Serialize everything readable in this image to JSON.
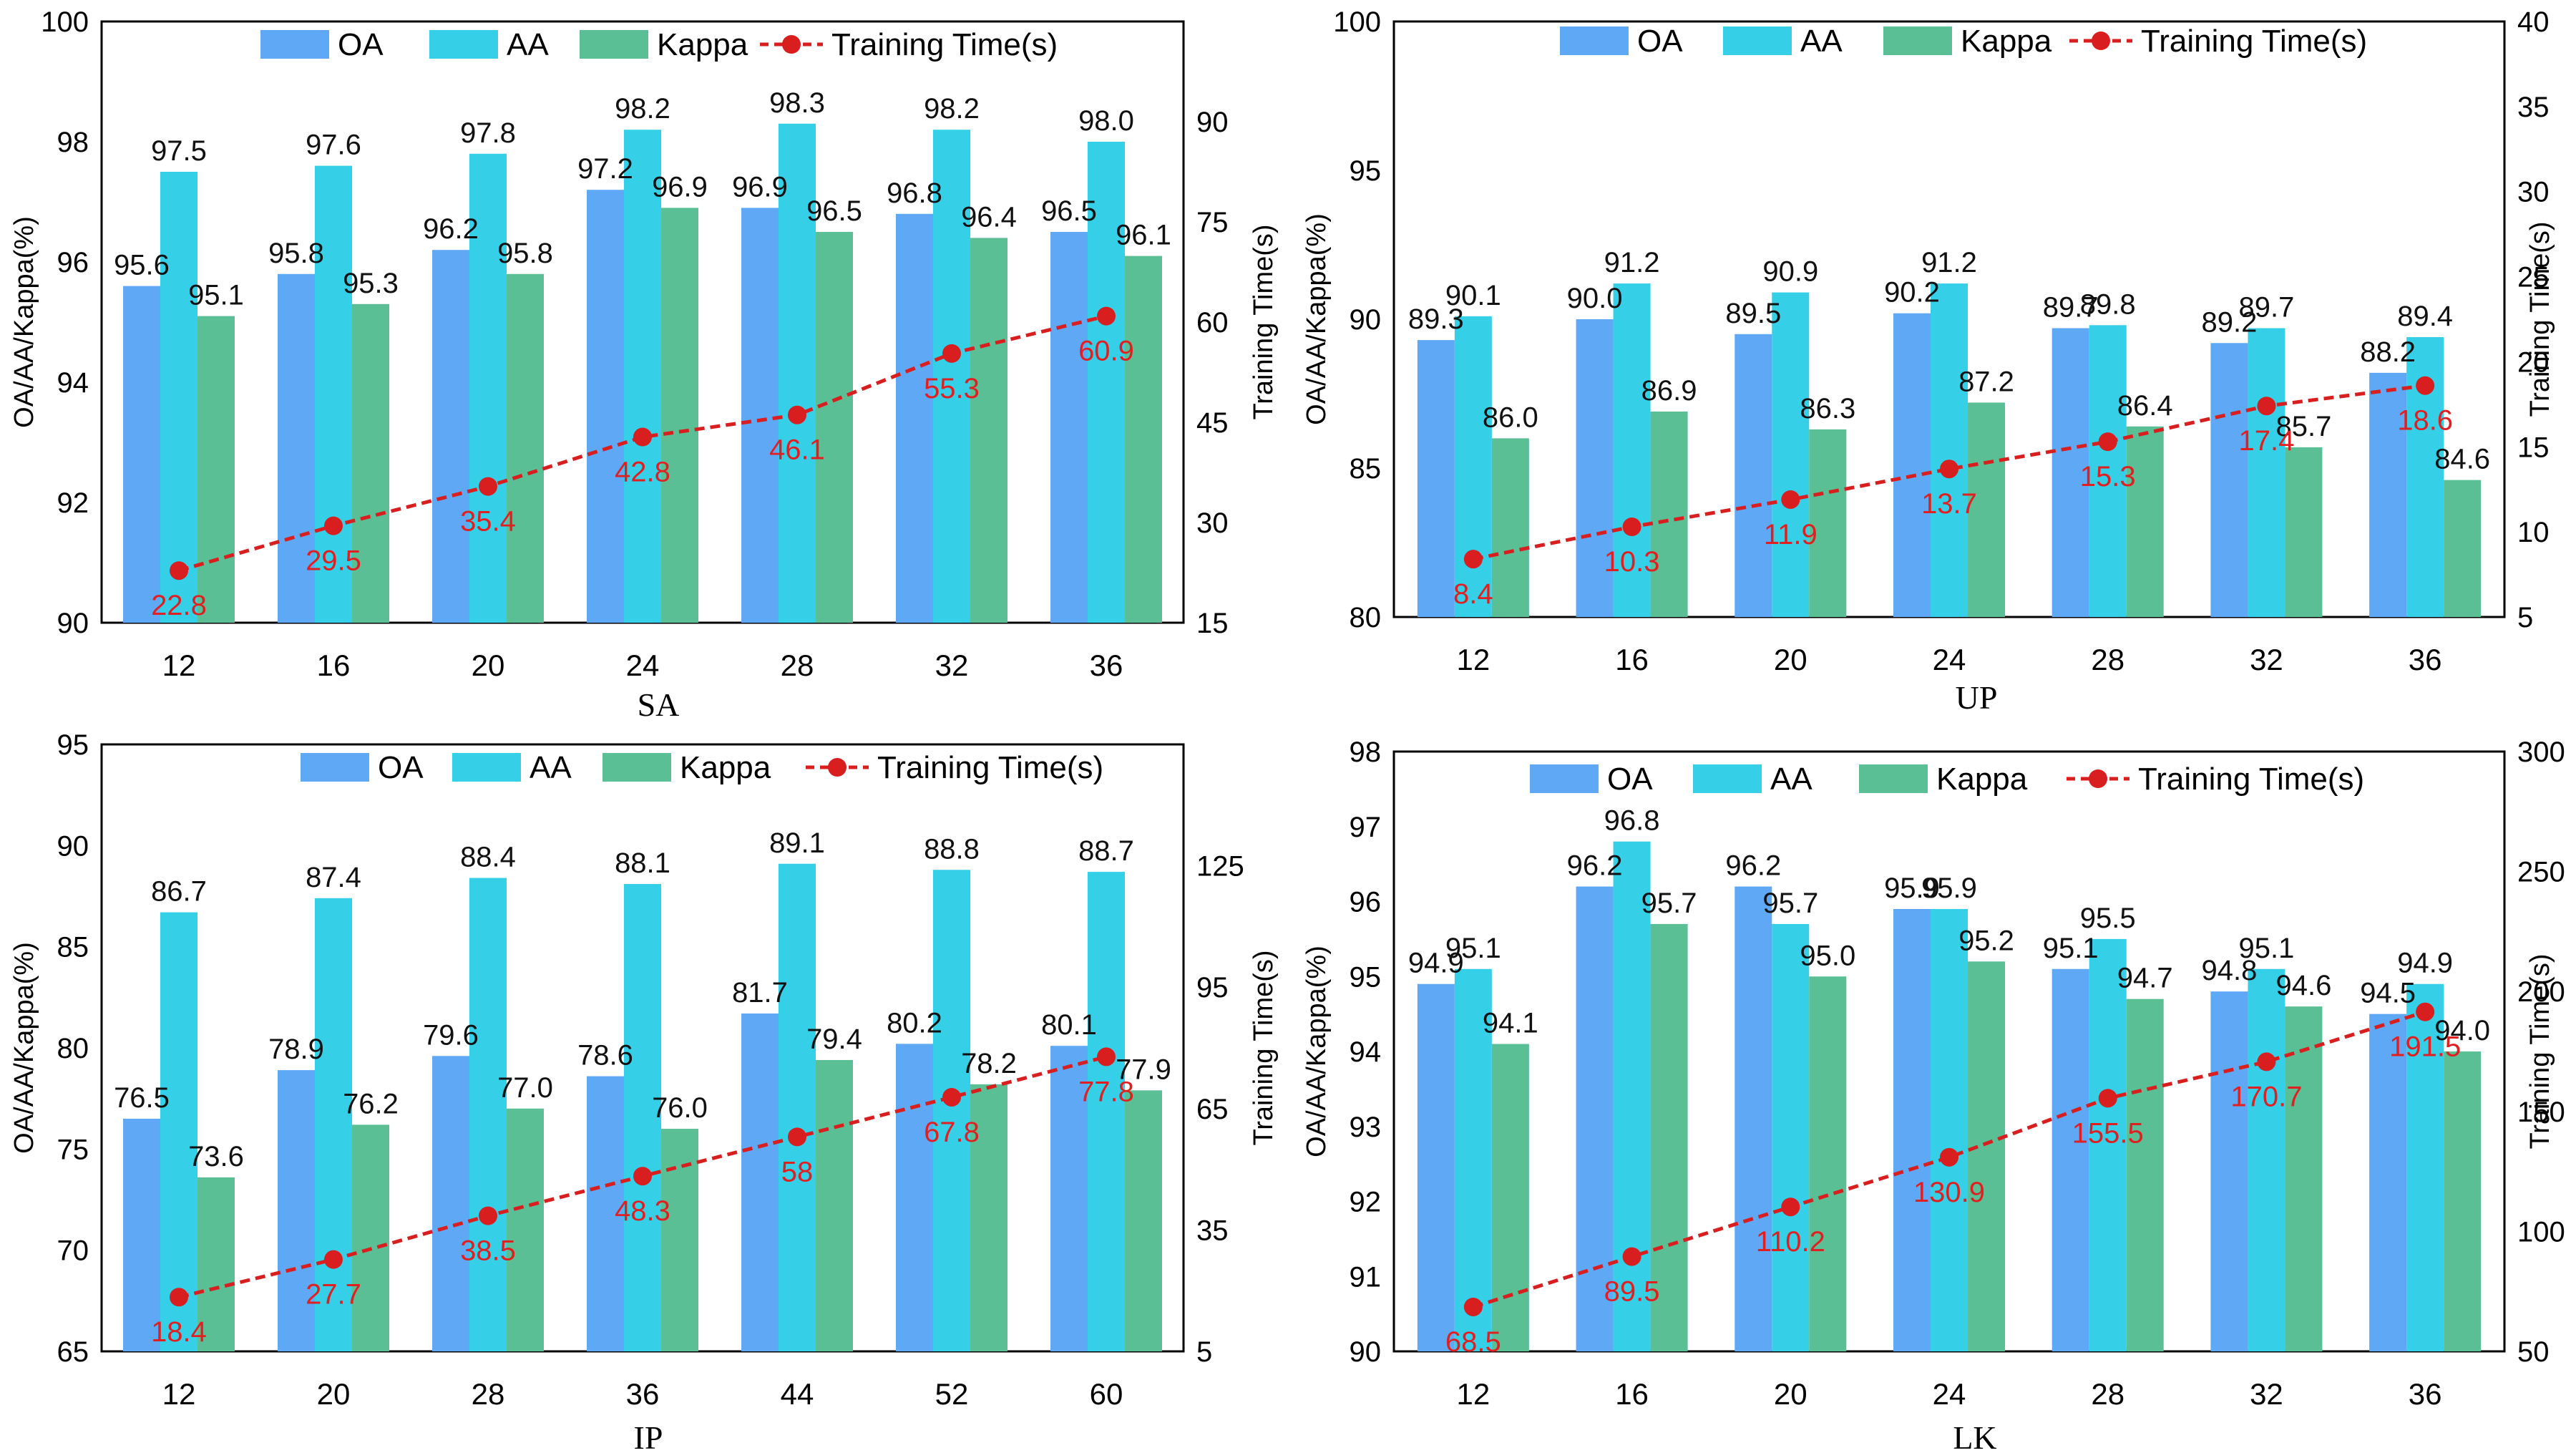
{
  "colors": {
    "OA": "#5fa8f5",
    "AA": "#35cfe8",
    "Kappa": "#5bbf95",
    "time": "#d81e1e",
    "time_label": "#e02020",
    "leader": "#a6a6a6"
  },
  "chart_data": [
    {
      "type": "bar",
      "title": "SA",
      "xlabel": "SA",
      "ylabel": "OA/AA/Kappa(%)",
      "y2label": "Training Time(s)",
      "ylim": [
        90,
        100
      ],
      "yticks": [
        90,
        92,
        94,
        96,
        98,
        100
      ],
      "y2lim": [
        15,
        105
      ],
      "y2ticks": [
        15,
        30,
        45,
        60,
        75,
        90
      ],
      "categories": [
        "12",
        "16",
        "20",
        "24",
        "28",
        "32",
        "36"
      ],
      "series": [
        {
          "name": "OA",
          "values": [
            95.6,
            95.8,
            96.2,
            97.2,
            96.9,
            96.8,
            96.5
          ],
          "labels": [
            "95.6",
            "95.8",
            "96.2",
            "97.2",
            "96.9",
            "96.8",
            "96.5"
          ]
        },
        {
          "name": "AA",
          "values": [
            97.5,
            97.6,
            97.8,
            98.2,
            98.3,
            98.2,
            98.0
          ],
          "labels": [
            "97.5",
            "97.6",
            "97.8",
            "98.2",
            "98.3",
            "98.2",
            "98.0"
          ]
        },
        {
          "name": "Kappa",
          "values": [
            95.1,
            95.3,
            95.8,
            96.9,
            96.5,
            96.4,
            96.1
          ],
          "labels": [
            "95.1",
            "95.3",
            "95.8",
            "96.9",
            "96.5",
            "96.4",
            "96.1"
          ]
        }
      ],
      "line": {
        "name": "Training Time(s)",
        "values": [
          22.8,
          29.5,
          35.4,
          42.8,
          46.1,
          55.3,
          60.9
        ],
        "labels": [
          "22.8",
          "29.5",
          "35.4",
          "42.8",
          "46.1",
          "55.3",
          "60.9"
        ]
      },
      "legend": [
        "OA",
        "AA",
        "Kappa",
        "Training Time(s)"
      ]
    },
    {
      "type": "bar",
      "title": "UP",
      "xlabel": "UP",
      "ylabel": "OA/AA/Kappa(%)",
      "y2label": "Training Time(s)",
      "ylim": [
        80,
        100
      ],
      "yticks": [
        80,
        85,
        90,
        95,
        100
      ],
      "y2lim": [
        5,
        40
      ],
      "y2ticks": [
        5,
        10,
        15,
        20,
        25,
        30,
        35,
        40
      ],
      "categories": [
        "12",
        "16",
        "20",
        "24",
        "28",
        "32",
        "36"
      ],
      "series": [
        {
          "name": "OA",
          "values": [
            89.3,
            90.0,
            89.5,
            90.2,
            89.7,
            89.2,
            88.2
          ],
          "labels": [
            "89.3",
            "90.0",
            "89.5",
            "90.2",
            "89.7",
            "89.2",
            "88.2"
          ]
        },
        {
          "name": "AA",
          "values": [
            90.1,
            91.2,
            90.9,
            91.2,
            89.8,
            89.7,
            89.4
          ],
          "labels": [
            "90.1",
            "91.2",
            "90.9",
            "91.2",
            "89.8",
            "89.7",
            "89.4"
          ]
        },
        {
          "name": "Kappa",
          "values": [
            86.0,
            86.9,
            86.3,
            87.2,
            86.4,
            85.7,
            84.6
          ],
          "labels": [
            "86.0",
            "86.9",
            "86.3",
            "87.2",
            "86.4",
            "85.7",
            "84.6"
          ]
        }
      ],
      "line": {
        "name": "Training Time(s)",
        "values": [
          8.4,
          10.3,
          11.9,
          13.7,
          15.3,
          17.4,
          18.6
        ],
        "labels": [
          "8.4",
          "10.3",
          "11.9",
          "13.7",
          "15.3",
          "17.4",
          "18.6"
        ]
      },
      "legend": [
        "OA",
        "AA",
        "Kappa",
        "Training Time(s)"
      ]
    },
    {
      "type": "bar",
      "title": "IP",
      "xlabel": "IP",
      "ylabel": "OA/AA/Kappa(%)",
      "y2label": "Training Time(s)",
      "ylim": [
        65,
        95
      ],
      "yticks": [
        65,
        70,
        75,
        80,
        85,
        90,
        95
      ],
      "y2lim": [
        5,
        155
      ],
      "y2ticks": [
        5,
        35,
        65,
        95,
        125
      ],
      "categories": [
        "12",
        "20",
        "28",
        "36",
        "44",
        "52",
        "60"
      ],
      "series": [
        {
          "name": "OA",
          "values": [
            76.5,
            78.9,
            79.6,
            78.6,
            81.7,
            80.2,
            80.1
          ],
          "labels": [
            "76.5",
            "78.9",
            "79.6",
            "78.6",
            "81.7",
            "80.2",
            "80.1"
          ]
        },
        {
          "name": "AA",
          "values": [
            86.7,
            87.4,
            88.4,
            88.1,
            89.1,
            88.8,
            88.7
          ],
          "labels": [
            "86.7",
            "87.4",
            "88.4",
            "88.1",
            "89.1",
            "88.8",
            "88.7"
          ]
        },
        {
          "name": "Kappa",
          "values": [
            73.6,
            76.2,
            77.0,
            76.0,
            79.4,
            78.2,
            77.9
          ],
          "labels": [
            "73.6",
            "76.2",
            "77.0",
            "76.0",
            "79.4",
            "78.2",
            "77.9"
          ]
        }
      ],
      "line": {
        "name": "Training Time(s)",
        "values": [
          18.4,
          27.7,
          38.5,
          48.3,
          58,
          67.8,
          77.8
        ],
        "labels": [
          "18.4",
          "27.7",
          "38.5",
          "48.3",
          "58",
          "67.8",
          "77.8"
        ]
      },
      "legend": [
        "OA",
        "AA",
        "Kappa",
        "Training Time(s)"
      ]
    },
    {
      "type": "bar",
      "title": "LK",
      "xlabel": "LK",
      "ylabel": "OA/AA/Kappa(%)",
      "y2label": "Training Time(s)",
      "ylim": [
        90,
        98
      ],
      "yticks": [
        90,
        91,
        92,
        93,
        94,
        95,
        96,
        97,
        98
      ],
      "y2lim": [
        50,
        300
      ],
      "y2ticks": [
        50,
        100,
        150,
        200,
        250,
        300
      ],
      "categories": [
        "12",
        "16",
        "20",
        "24",
        "28",
        "32",
        "36"
      ],
      "series": [
        {
          "name": "OA",
          "values": [
            94.9,
            96.2,
            96.2,
            95.9,
            95.1,
            94.8,
            94.5
          ],
          "labels": [
            "94.9",
            "96.2",
            "96.2",
            "95.9",
            "95.1",
            "94.8",
            "94.5"
          ]
        },
        {
          "name": "AA",
          "values": [
            95.1,
            96.8,
            95.7,
            95.9,
            95.5,
            95.1,
            94.9
          ],
          "labels": [
            "95.1",
            "96.8",
            "95.7",
            "95.9",
            "95.5",
            "95.1",
            "94.9"
          ]
        },
        {
          "name": "Kappa",
          "values": [
            94.1,
            95.7,
            95.0,
            95.2,
            94.7,
            94.6,
            94.0
          ],
          "labels": [
            "94.1",
            "95.7",
            "95.0",
            "95.2",
            "94.7",
            "94.6",
            "94.0"
          ]
        }
      ],
      "line": {
        "name": "Training Time(s)",
        "values": [
          68.5,
          89.5,
          110.2,
          130.9,
          155.5,
          170.7,
          191.5
        ],
        "labels": [
          "68.5",
          "89.5",
          "110.2",
          "130.9",
          "155.5",
          "170.7",
          "191.5"
        ]
      },
      "legend": [
        "OA",
        "AA",
        "Kappa",
        "Training Time(s)"
      ]
    }
  ]
}
